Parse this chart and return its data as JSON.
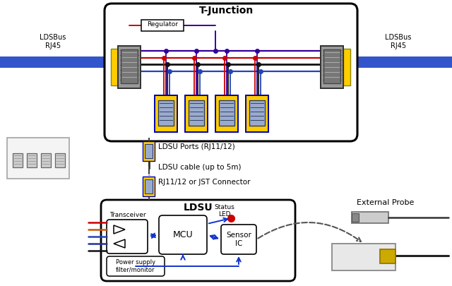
{
  "bg_color": "#ffffff",
  "t_junction_label": "T-Junction",
  "ldsu_label": "LDSU",
  "regulator_label": "Regulator",
  "mcu_label": "MCU",
  "transceiver_label": "Transceiver",
  "sensor_ic_label": "Sensor\nIC",
  "power_supply_label": "Power supply\nfilter/monitor",
  "status_led_label": "Status\nLED",
  "external_probe_label": "External Probe",
  "ldsu_ports_label": "LDSU Ports (RJ11/12)",
  "ldsu_cable_label": "LDSU cable (up to 5m)",
  "rj11_label": "RJ11/12 or JST Connector",
  "ldsbus_rj45_left": "LDSBus\nRJ45",
  "ldsbus_rj45_right": "LDSBus\nRJ45",
  "RED": "#cc0000",
  "BLK": "#111111",
  "PURP": "#330099",
  "BLU": "#2244bb",
  "ORG": "#cc5500",
  "DKBL": "#223399",
  "blue_arrow": "#1133cc",
  "red_dot": "#cc0000",
  "yellow": "#ffcc00",
  "cable_blue": "#3355cc"
}
